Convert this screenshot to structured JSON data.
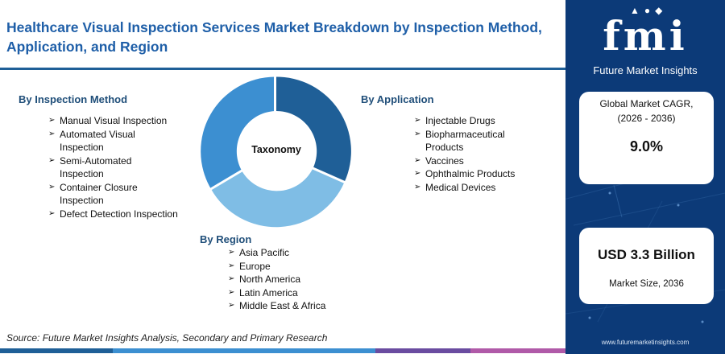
{
  "title": "Healthcare Visual Inspection Services Market Breakdown by Inspection Method, Application, and Region",
  "center_label": "Taxonomy",
  "inspection_method": {
    "heading": "By Inspection Method",
    "items": [
      [
        "Manual Visual Inspection"
      ],
      [
        "Automated Visual",
        "Inspection"
      ],
      [
        "Semi-Automated",
        "Inspection"
      ],
      [
        "Container Closure",
        "Inspection"
      ],
      [
        "Defect Detection Inspection"
      ]
    ]
  },
  "application": {
    "heading": "By Application",
    "items": [
      [
        "Injectable Drugs"
      ],
      [
        "Biopharmaceutical",
        "Products"
      ],
      [
        "Vaccines"
      ],
      [
        "Ophthalmic Products"
      ],
      [
        "Medical Devices"
      ]
    ]
  },
  "region": {
    "heading": "By Region",
    "items": [
      [
        "Asia Pacific"
      ],
      [
        "Europe"
      ],
      [
        "North America"
      ],
      [
        "Latin America"
      ],
      [
        "Middle East & Africa"
      ]
    ]
  },
  "source": "Source: Future Market Insights Analysis, Secondary and Primary Research",
  "panel": {
    "logo_main": "fmi",
    "logo_sub": "Future Market Insights",
    "cagr_label_line1": "Global Market CAGR,",
    "cagr_label_line2": "(2026 - 2036)",
    "cagr_value": "9.0%",
    "market_size_value": "USD 3.3 Billion",
    "market_size_label": "Market Size, 2036",
    "url": "www.futuremarketinsights.com"
  },
  "colors": {
    "title": "#1f5fa8",
    "panel_bg": "#0c3a78",
    "donut_dark": "#1f5f97",
    "donut_mid": "#3c8fd1",
    "donut_light": "#7fbde5",
    "bar_segments": [
      "#1f5f97",
      "#3c8fd1",
      "#6a4ca0",
      "#b05aa8"
    ]
  }
}
